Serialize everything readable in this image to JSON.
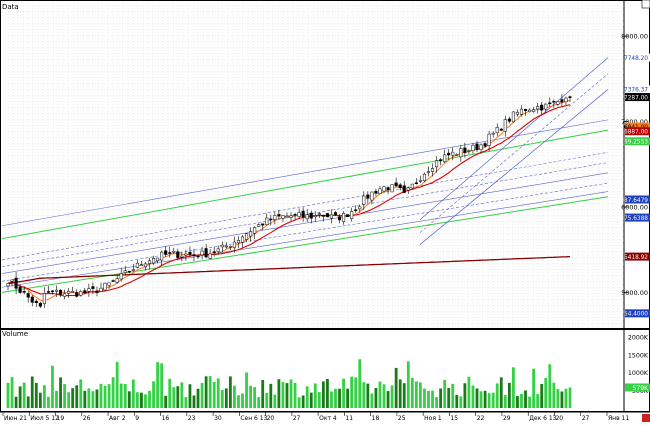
{
  "panels": {
    "price_label": "Data",
    "volume_label": "Volume"
  },
  "price_axis": {
    "ticks": [
      "8000.00",
      "7000.00",
      "6000.00",
      "5000.00"
    ],
    "tags": [
      {
        "text": "7748.20",
        "bg": "#ffffff",
        "fg": "#1f3fbf"
      },
      {
        "text": "7376.37",
        "bg": "#ffffff",
        "fg": "#1f3fbf"
      },
      {
        "text": "7287.00",
        "bg": "#000000",
        "fg": "#ffffff"
      },
      {
        "text": "6941.00",
        "bg": "#ff7a1a",
        "fg": "#000000"
      },
      {
        "text": "6887.00",
        "bg": "#b80000",
        "fg": "#ffffff"
      },
      {
        "text": "6769.2553",
        "bg": "#35d045",
        "fg": "#ffffff"
      },
      {
        "text": "6087.6479",
        "bg": "#1f3fbf",
        "fg": "#ffffff"
      },
      {
        "text": "5875.6388",
        "bg": "#1f3fbf",
        "fg": "#ffffff"
      },
      {
        "text": "5418.92",
        "bg": "#8b0000",
        "fg": "#ffffff"
      },
      {
        "text": "4754.4000",
        "bg": "#1f3fbf",
        "fg": "#ffffff"
      }
    ]
  },
  "volume_axis": {
    "ticks": [
      "2000K",
      "1500K",
      "1000K",
      "500K"
    ],
    "tag": {
      "text": "579K",
      "bg": "#35d045",
      "fg": "#ffffff"
    }
  },
  "x_labels": [
    "Июн 21",
    "Июл 5 12",
    "19",
    "26",
    "Авг 2",
    "9",
    "16",
    "23",
    "30",
    "Сен 6 13",
    "20",
    "27",
    "Окт 4",
    "11",
    "18",
    "25",
    "Ноя 1",
    "15",
    "22",
    "29",
    "Дек 6 13",
    "20",
    "27",
    "Янв 11"
  ],
  "colors": {
    "grid": "#c8c8c8",
    "ma_fast": "#ff7a1a",
    "ma_mid": "#e00000",
    "ma_slow": "#8b0000",
    "trend_green": "#35d045",
    "channel_blue": "#5566cc",
    "volume_up": "#35d045",
    "volume_down": "#1a7a1a"
  },
  "chart_data": {
    "type": "candlestick",
    "series": [
      {
        "name": "Data",
        "kind": "candlestick",
        "points": 140,
        "start": 5200,
        "end": 7287,
        "min": 4754.4,
        "max": 7376.37
      },
      {
        "name": "ma_fast",
        "kind": "moving_average"
      },
      {
        "name": "ma_mid",
        "kind": "moving_average"
      },
      {
        "name": "ma_slow",
        "kind": "moving_average",
        "last": 5418.92
      },
      {
        "name": "Volume",
        "kind": "bar",
        "last": 579
      }
    ],
    "ylim": [
      4700,
      8400
    ],
    "volume_ylim": [
      0,
      2200
    ]
  }
}
